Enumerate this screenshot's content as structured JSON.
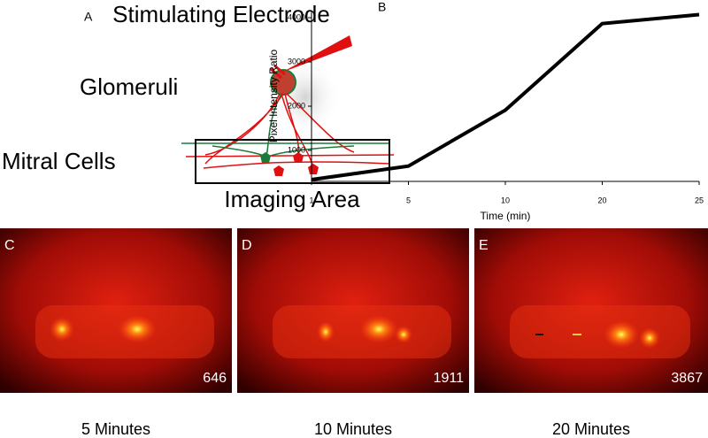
{
  "panel_labels": [
    "A",
    "B",
    "C",
    "D",
    "E"
  ],
  "diagram": {
    "title": "Stimulating Electrode",
    "glomeruli": "Glomeruli",
    "mitral": "Mitral Cells",
    "area": "Imaging Area"
  },
  "chart_data": {
    "type": "line",
    "categories": [
      "1",
      "5",
      "10",
      "20",
      "25"
    ],
    "values": [
      340,
      646,
      1911,
      3867,
      4070
    ],
    "color": "#000000",
    "xlabel": "Time (min)",
    "ylabel": "Pixel Intensity Ratio",
    "ylim": [
      300,
      4160
    ],
    "yticks": [
      1000,
      2000,
      3000,
      4000
    ],
    "grid": false
  },
  "images": [
    {
      "value": 646,
      "caption": "5 Minutes"
    },
    {
      "value": 1911,
      "caption": "10 Minutes"
    },
    {
      "value": 3867,
      "caption": "20 Minutes"
    }
  ]
}
